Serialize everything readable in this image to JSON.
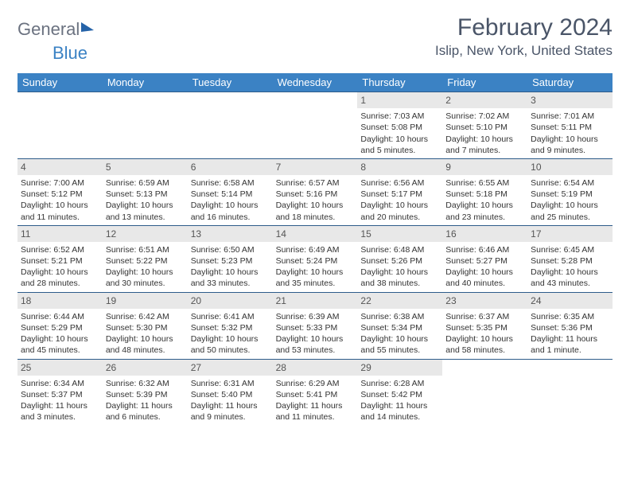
{
  "logo": {
    "part1": "General",
    "part2": "Blue"
  },
  "header": {
    "month_title": "February 2024",
    "location": "Islip, New York, United States"
  },
  "colors": {
    "header_bg": "#3b82c4",
    "header_text": "#ffffff",
    "daynum_bg": "#e8e8e8",
    "daynum_text": "#555555",
    "body_text": "#333333",
    "divider": "#2e5c8a"
  },
  "weekdays": [
    "Sunday",
    "Monday",
    "Tuesday",
    "Wednesday",
    "Thursday",
    "Friday",
    "Saturday"
  ],
  "weeks": [
    [
      null,
      null,
      null,
      null,
      {
        "n": "1",
        "sunrise": "Sunrise: 7:03 AM",
        "sunset": "Sunset: 5:08 PM",
        "daylight": "Daylight: 10 hours and 5 minutes."
      },
      {
        "n": "2",
        "sunrise": "Sunrise: 7:02 AM",
        "sunset": "Sunset: 5:10 PM",
        "daylight": "Daylight: 10 hours and 7 minutes."
      },
      {
        "n": "3",
        "sunrise": "Sunrise: 7:01 AM",
        "sunset": "Sunset: 5:11 PM",
        "daylight": "Daylight: 10 hours and 9 minutes."
      }
    ],
    [
      {
        "n": "4",
        "sunrise": "Sunrise: 7:00 AM",
        "sunset": "Sunset: 5:12 PM",
        "daylight": "Daylight: 10 hours and 11 minutes."
      },
      {
        "n": "5",
        "sunrise": "Sunrise: 6:59 AM",
        "sunset": "Sunset: 5:13 PM",
        "daylight": "Daylight: 10 hours and 13 minutes."
      },
      {
        "n": "6",
        "sunrise": "Sunrise: 6:58 AM",
        "sunset": "Sunset: 5:14 PM",
        "daylight": "Daylight: 10 hours and 16 minutes."
      },
      {
        "n": "7",
        "sunrise": "Sunrise: 6:57 AM",
        "sunset": "Sunset: 5:16 PM",
        "daylight": "Daylight: 10 hours and 18 minutes."
      },
      {
        "n": "8",
        "sunrise": "Sunrise: 6:56 AM",
        "sunset": "Sunset: 5:17 PM",
        "daylight": "Daylight: 10 hours and 20 minutes."
      },
      {
        "n": "9",
        "sunrise": "Sunrise: 6:55 AM",
        "sunset": "Sunset: 5:18 PM",
        "daylight": "Daylight: 10 hours and 23 minutes."
      },
      {
        "n": "10",
        "sunrise": "Sunrise: 6:54 AM",
        "sunset": "Sunset: 5:19 PM",
        "daylight": "Daylight: 10 hours and 25 minutes."
      }
    ],
    [
      {
        "n": "11",
        "sunrise": "Sunrise: 6:52 AM",
        "sunset": "Sunset: 5:21 PM",
        "daylight": "Daylight: 10 hours and 28 minutes."
      },
      {
        "n": "12",
        "sunrise": "Sunrise: 6:51 AM",
        "sunset": "Sunset: 5:22 PM",
        "daylight": "Daylight: 10 hours and 30 minutes."
      },
      {
        "n": "13",
        "sunrise": "Sunrise: 6:50 AM",
        "sunset": "Sunset: 5:23 PM",
        "daylight": "Daylight: 10 hours and 33 minutes."
      },
      {
        "n": "14",
        "sunrise": "Sunrise: 6:49 AM",
        "sunset": "Sunset: 5:24 PM",
        "daylight": "Daylight: 10 hours and 35 minutes."
      },
      {
        "n": "15",
        "sunrise": "Sunrise: 6:48 AM",
        "sunset": "Sunset: 5:26 PM",
        "daylight": "Daylight: 10 hours and 38 minutes."
      },
      {
        "n": "16",
        "sunrise": "Sunrise: 6:46 AM",
        "sunset": "Sunset: 5:27 PM",
        "daylight": "Daylight: 10 hours and 40 minutes."
      },
      {
        "n": "17",
        "sunrise": "Sunrise: 6:45 AM",
        "sunset": "Sunset: 5:28 PM",
        "daylight": "Daylight: 10 hours and 43 minutes."
      }
    ],
    [
      {
        "n": "18",
        "sunrise": "Sunrise: 6:44 AM",
        "sunset": "Sunset: 5:29 PM",
        "daylight": "Daylight: 10 hours and 45 minutes."
      },
      {
        "n": "19",
        "sunrise": "Sunrise: 6:42 AM",
        "sunset": "Sunset: 5:30 PM",
        "daylight": "Daylight: 10 hours and 48 minutes."
      },
      {
        "n": "20",
        "sunrise": "Sunrise: 6:41 AM",
        "sunset": "Sunset: 5:32 PM",
        "daylight": "Daylight: 10 hours and 50 minutes."
      },
      {
        "n": "21",
        "sunrise": "Sunrise: 6:39 AM",
        "sunset": "Sunset: 5:33 PM",
        "daylight": "Daylight: 10 hours and 53 minutes."
      },
      {
        "n": "22",
        "sunrise": "Sunrise: 6:38 AM",
        "sunset": "Sunset: 5:34 PM",
        "daylight": "Daylight: 10 hours and 55 minutes."
      },
      {
        "n": "23",
        "sunrise": "Sunrise: 6:37 AM",
        "sunset": "Sunset: 5:35 PM",
        "daylight": "Daylight: 10 hours and 58 minutes."
      },
      {
        "n": "24",
        "sunrise": "Sunrise: 6:35 AM",
        "sunset": "Sunset: 5:36 PM",
        "daylight": "Daylight: 11 hours and 1 minute."
      }
    ],
    [
      {
        "n": "25",
        "sunrise": "Sunrise: 6:34 AM",
        "sunset": "Sunset: 5:37 PM",
        "daylight": "Daylight: 11 hours and 3 minutes."
      },
      {
        "n": "26",
        "sunrise": "Sunrise: 6:32 AM",
        "sunset": "Sunset: 5:39 PM",
        "daylight": "Daylight: 11 hours and 6 minutes."
      },
      {
        "n": "27",
        "sunrise": "Sunrise: 6:31 AM",
        "sunset": "Sunset: 5:40 PM",
        "daylight": "Daylight: 11 hours and 9 minutes."
      },
      {
        "n": "28",
        "sunrise": "Sunrise: 6:29 AM",
        "sunset": "Sunset: 5:41 PM",
        "daylight": "Daylight: 11 hours and 11 minutes."
      },
      {
        "n": "29",
        "sunrise": "Sunrise: 6:28 AM",
        "sunset": "Sunset: 5:42 PM",
        "daylight": "Daylight: 11 hours and 14 minutes."
      },
      null,
      null
    ]
  ]
}
